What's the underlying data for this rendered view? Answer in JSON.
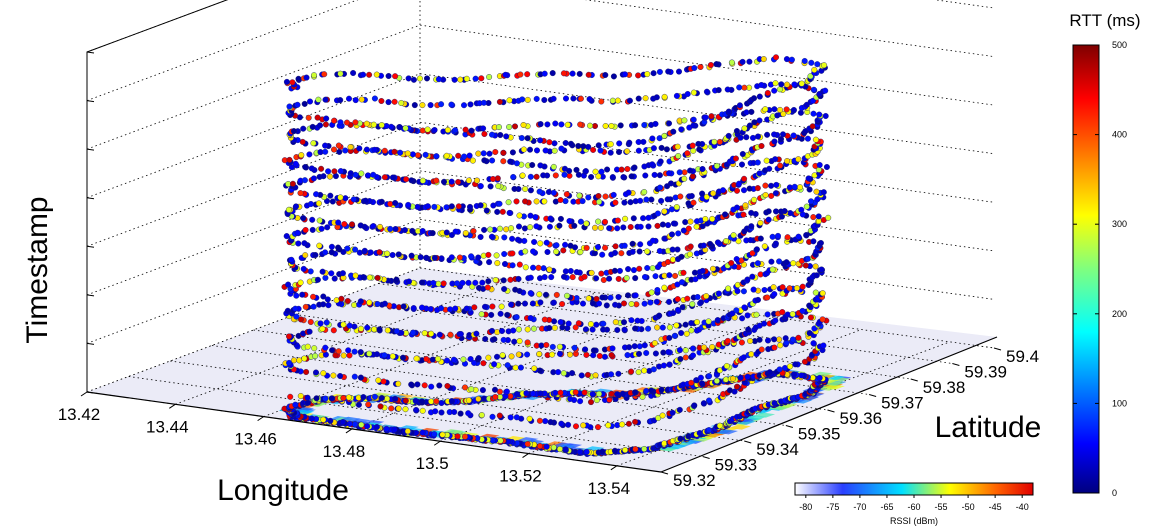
{
  "chart_data": {
    "type": "scatter",
    "subtype": "3d-scatter-with-ground-heatmap",
    "axes": {
      "x": {
        "label": "Longitude",
        "ticks": [
          "13.42",
          "13.44",
          "13.46",
          "13.48",
          "13.5",
          "13.52",
          "13.54"
        ],
        "range": [
          13.42,
          13.55
        ]
      },
      "y": {
        "label": "Latitude",
        "ticks": [
          "59.32",
          "59.33",
          "59.34",
          "59.35",
          "59.36",
          "59.37",
          "59.38",
          "59.39",
          "59.4"
        ],
        "range": [
          59.32,
          59.4
        ]
      },
      "z": {
        "label": "Timestamp",
        "ticks": [],
        "tick_count": 7
      }
    },
    "grid": true,
    "point_color": {
      "label": "RTT (ms)",
      "min": 0,
      "max": 500,
      "ticks": [
        "0",
        "100",
        "200",
        "300",
        "400",
        "500"
      ],
      "colormap": "jet",
      "placement": "right"
    },
    "ground_color": {
      "label": "RSSI (dBm)",
      "min": -82,
      "max": -38,
      "ticks": [
        "-80",
        "-75",
        "-70",
        "-65",
        "-60",
        "-55",
        "-50",
        "-45",
        "-40"
      ],
      "colormap": "white-blue-cyan-yellow-red",
      "placement": "bottom-right"
    },
    "trajectory": {
      "description": "vehicle route loop repeated over time",
      "route": [
        [
          13.465,
          59.322
        ],
        [
          13.49,
          59.322
        ],
        [
          13.51,
          59.324
        ],
        [
          13.53,
          59.324
        ],
        [
          13.538,
          59.33
        ],
        [
          13.54,
          59.344
        ],
        [
          13.538,
          59.356
        ],
        [
          13.54,
          59.366
        ],
        [
          13.536,
          59.374
        ],
        [
          13.526,
          59.374
        ],
        [
          13.52,
          59.367
        ],
        [
          13.515,
          59.359
        ],
        [
          13.508,
          59.353
        ],
        [
          13.5,
          59.351
        ],
        [
          13.493,
          59.347
        ],
        [
          13.486,
          59.34
        ],
        [
          13.48,
          59.337
        ],
        [
          13.47,
          59.336
        ],
        [
          13.462,
          59.332
        ],
        [
          13.46,
          59.326
        ],
        [
          13.465,
          59.322
        ]
      ],
      "laps": 12
    },
    "colors": {
      "pane": "#ebebf7",
      "grid": "#000000"
    }
  }
}
